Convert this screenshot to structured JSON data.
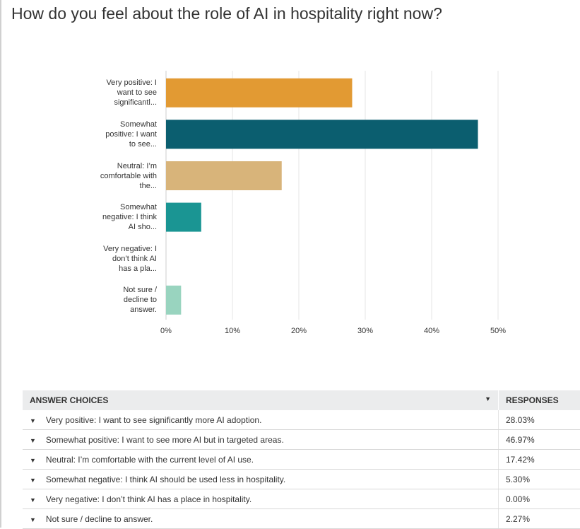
{
  "title": "How do you feel about the role of AI in hospitality right now?",
  "chart_data": {
    "type": "bar",
    "orientation": "horizontal",
    "categories": [
      "Very positive: I want to see significantl...",
      "Somewhat positive: I want to see...",
      "Neutral: I’m comfortable with the...",
      "Somewhat negative: I think AI sho...",
      "Very negative: I don’t think AI has a pla...",
      "Not sure / decline to answer."
    ],
    "values": [
      28.03,
      46.97,
      17.42,
      5.3,
      0.0,
      2.27
    ],
    "colors": [
      "#e29a33",
      "#0b5e6f",
      "#d8b47a",
      "#1a9593",
      "#b8dcdc",
      "#99d4bf"
    ],
    "xlim": [
      0,
      50
    ],
    "ticks": [
      "0%",
      "10%",
      "20%",
      "30%",
      "40%",
      "50%"
    ],
    "grid": true
  },
  "table": {
    "headers": [
      "ANSWER CHOICES",
      "RESPONSES"
    ],
    "rows": [
      {
        "choice": "Very positive: I want to see significantly more AI adoption.",
        "pct": "28.03%"
      },
      {
        "choice": "Somewhat positive: I want to see more AI but in targeted areas.",
        "pct": "46.97%"
      },
      {
        "choice": "Neutral: I’m comfortable with the current level of AI use.",
        "pct": "17.42%"
      },
      {
        "choice": "Somewhat negative: I think AI should be used less in hospitality.",
        "pct": "5.30%"
      },
      {
        "choice": "Very negative: I don’t think AI has a place in hospitality.",
        "pct": "0.00%"
      },
      {
        "choice": "Not sure / decline to answer.",
        "pct": "2.27%"
      }
    ]
  }
}
